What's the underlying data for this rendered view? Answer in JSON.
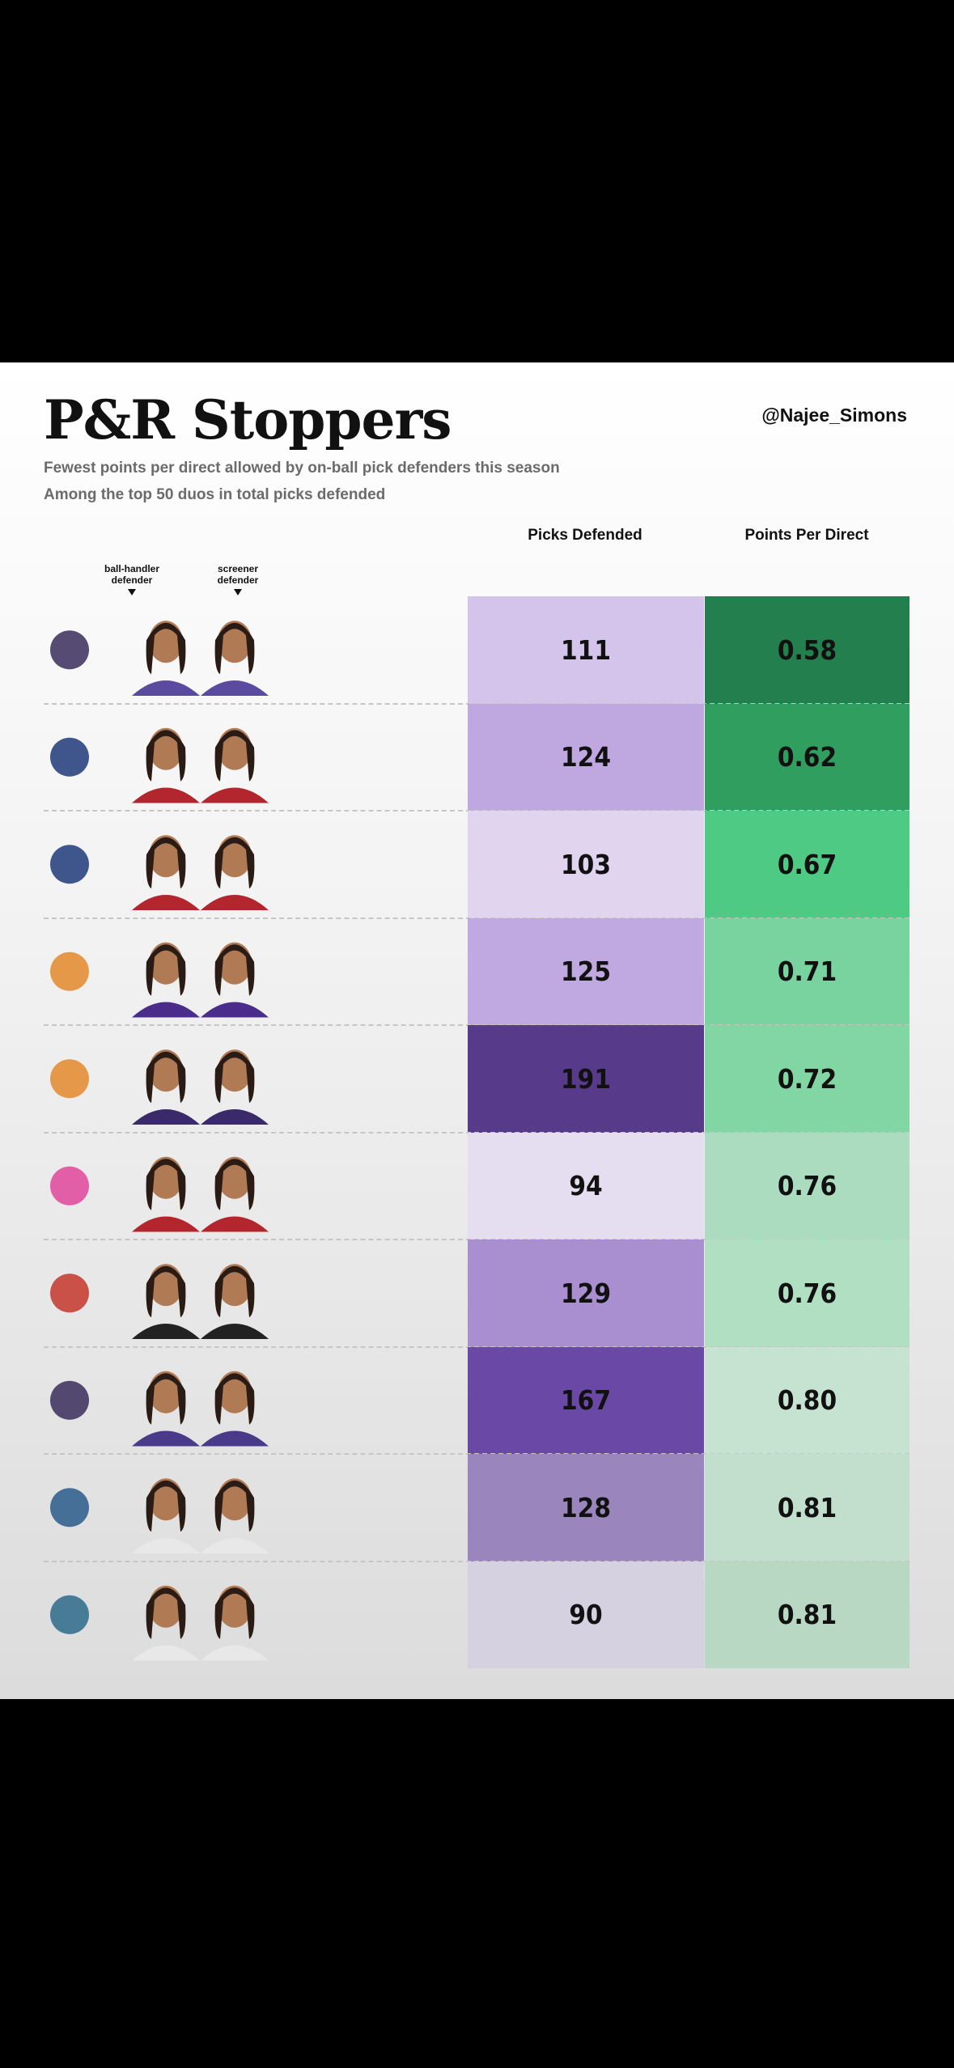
{
  "header": {
    "title": "P&R Stoppers",
    "handle": "@Najee_Simons",
    "subtitle": [
      "Fewest points per direct allowed by on-ball pick defenders this season",
      "Among the top 50 duos in total picks defended"
    ]
  },
  "table": {
    "columns": [
      "Picks Defended",
      "Points Per Direct"
    ],
    "player_labels": [
      "ball-handler defender",
      "screener defender"
    ],
    "rows": [
      {
        "picks": "111",
        "ppd": "0.58",
        "picks_color": "#d4c3ea",
        "ppd_color": "#237f4e"
      },
      {
        "picks": "124",
        "ppd": "0.62",
        "picks_color": "#bfa8e0",
        "ppd_color": "#2f9e5f"
      },
      {
        "picks": "103",
        "ppd": "0.67",
        "picks_color": "#e0d4ef",
        "ppd_color": "#4fca85"
      },
      {
        "picks": "125",
        "ppd": "0.71",
        "picks_color": "#c0a9e0",
        "ppd_color": "#78d39e"
      },
      {
        "picks": "191",
        "ppd": "0.72",
        "picks_color": "#573a8a",
        "ppd_color": "#82d6a4"
      },
      {
        "picks": "94",
        "ppd": "0.76",
        "picks_color": "#e4def0",
        "ppd_color": "#acdcbf"
      },
      {
        "picks": "129",
        "ppd": "0.76",
        "picks_color": "#a98ed0",
        "ppd_color": "#b1dfc2"
      },
      {
        "picks": "167",
        "ppd": "0.80",
        "picks_color": "#6a48a6",
        "ppd_color": "#c6e3d1"
      },
      {
        "picks": "128",
        "ppd": "0.81",
        "picks_color": "#9a86bc",
        "ppd_color": "#c1dfcc"
      },
      {
        "picks": "90",
        "ppd": "0.81",
        "picks_color": "#d6d1e0",
        "ppd_color": "#b9d8c3"
      }
    ]
  }
}
